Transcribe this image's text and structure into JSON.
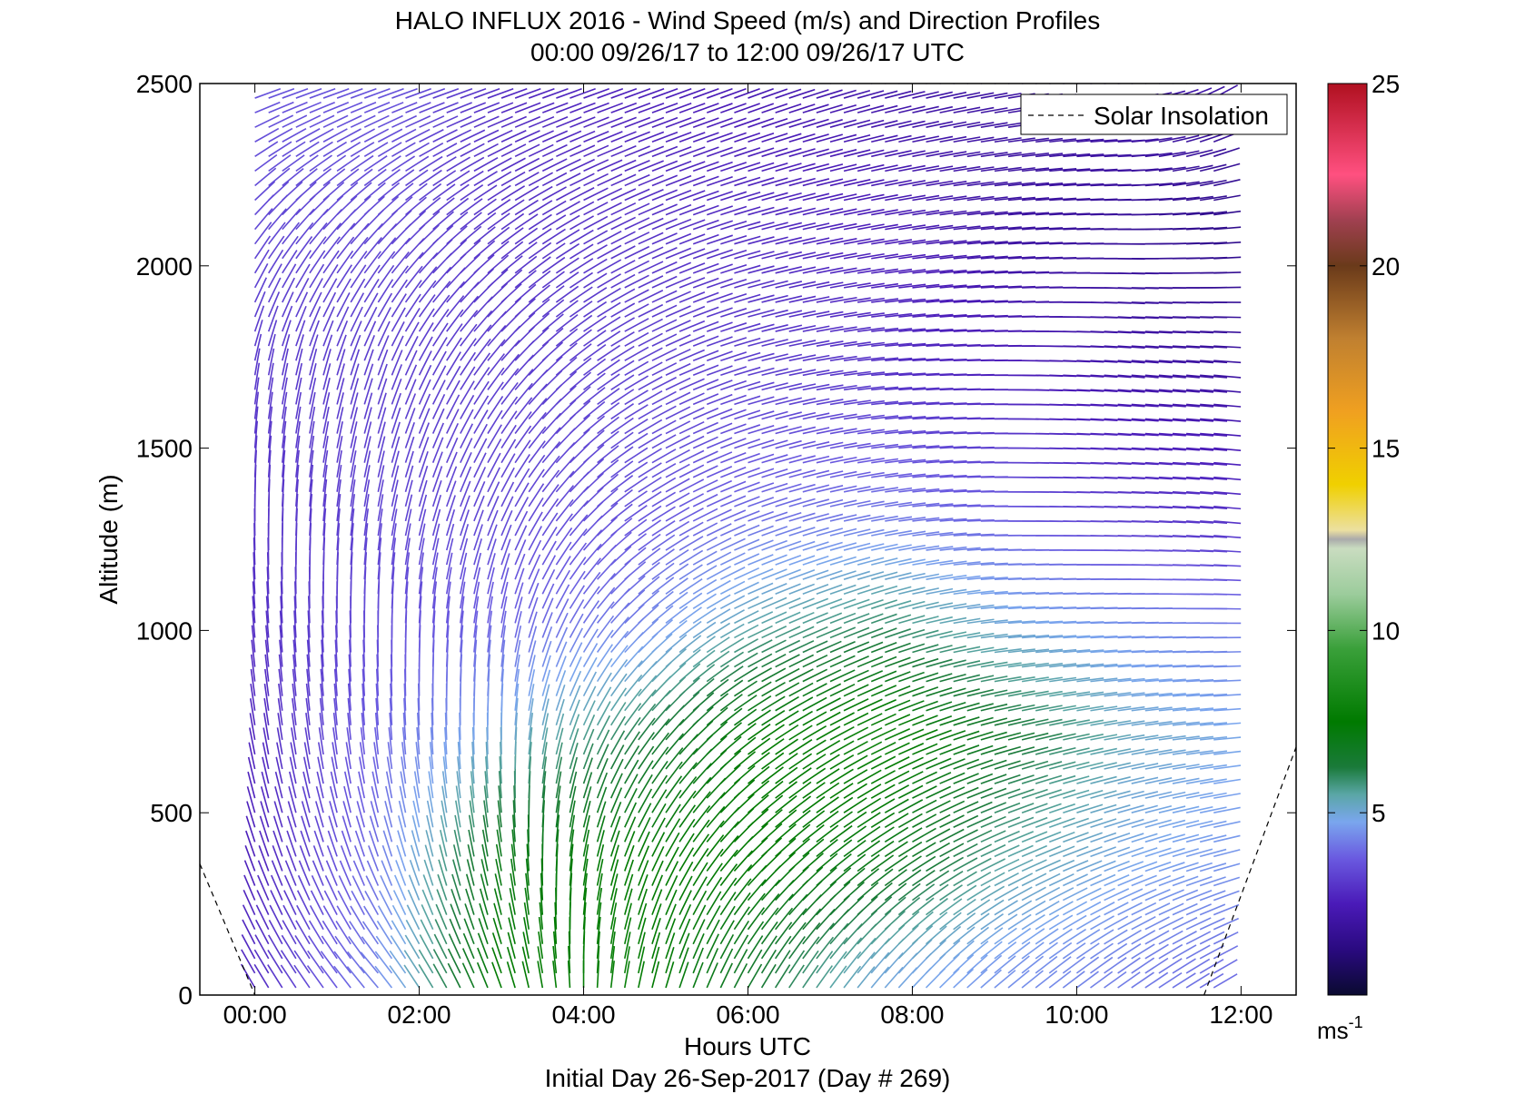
{
  "chart_data": {
    "type": "vector-field",
    "title": "HALO INFLUX 2016 - Wind Speed (m/s) and Direction Profiles",
    "subtitle": "00:00 09/26/17 to 12:00 09/26/17  UTC",
    "xlabel": "Hours UTC",
    "footer": "Initial Day 26-Sep-2017 (Day # 269)",
    "ylabel": "Altitude (m)",
    "x_unit": "hours",
    "x_range": [
      -0.67,
      12.67
    ],
    "y_range": [
      0,
      2500
    ],
    "x_ticks": [
      0,
      2,
      4,
      6,
      8,
      10,
      12
    ],
    "x_tick_labels": [
      "00:00",
      "02:00",
      "04:00",
      "06:00",
      "08:00",
      "10:00",
      "12:00"
    ],
    "y_ticks": [
      0,
      500,
      1000,
      1500,
      2000,
      2500
    ],
    "y_tick_labels": [
      "0",
      "500",
      "1000",
      "1500",
      "2000",
      "2500"
    ],
    "legend": {
      "label": "Solar Insolation",
      "placement": "top-right",
      "style": "dashed"
    },
    "colorbar": {
      "range": [
        0,
        25
      ],
      "ticks": [
        5,
        10,
        15,
        20,
        25
      ],
      "tick_labels": [
        "5",
        "10",
        "15",
        "20",
        "25"
      ],
      "unit_label": "ms",
      "unit_exponent": "-1"
    },
    "solar_insolation_curve": [
      {
        "x": -0.67,
        "y": 360
      },
      {
        "x": 0.0,
        "y": 0
      },
      {
        "x": 11.55,
        "y": 0
      },
      {
        "x": 12.67,
        "y": 680
      }
    ],
    "profiles": [
      {
        "time": 0.0,
        "speed": [
          2.8,
          2.6,
          2.7,
          2.9,
          3.0,
          3.1,
          3.4,
          3.6
        ],
        "direction": [
          150,
          160,
          170,
          175,
          180,
          190,
          220,
          250
        ]
      },
      {
        "time": 1.5,
        "speed": [
          4.2,
          4.0,
          3.8,
          3.5,
          3.3,
          3.2,
          3.4,
          3.6
        ],
        "direction": [
          140,
          160,
          175,
          180,
          190,
          200,
          225,
          250
        ]
      },
      {
        "time": 3.0,
        "speed": [
          7.5,
          7.0,
          5.0,
          3.8,
          3.4,
          3.2,
          3.0,
          2.8
        ],
        "direction": [
          160,
          170,
          180,
          190,
          205,
          220,
          235,
          250
        ]
      },
      {
        "time": 4.5,
        "speed": [
          7.8,
          7.5,
          6.0,
          4.2,
          3.6,
          3.3,
          3.0,
          2.6
        ],
        "direction": [
          190,
          200,
          215,
          225,
          235,
          240,
          245,
          250
        ]
      },
      {
        "time": 6.0,
        "speed": [
          6.5,
          7.5,
          7.5,
          5.5,
          4.0,
          3.2,
          2.8,
          2.4
        ],
        "direction": [
          210,
          225,
          235,
          245,
          250,
          255,
          255,
          250
        ]
      },
      {
        "time": 7.5,
        "speed": [
          5.0,
          7.0,
          8.0,
          6.0,
          4.2,
          3.0,
          2.5,
          2.2
        ],
        "direction": [
          220,
          235,
          245,
          250,
          260,
          265,
          260,
          255
        ]
      },
      {
        "time": 9.0,
        "speed": [
          4.5,
          5.5,
          6.5,
          5.0,
          3.8,
          2.6,
          2.0,
          2.0
        ],
        "direction": [
          230,
          245,
          255,
          265,
          270,
          270,
          265,
          260
        ]
      },
      {
        "time": 10.5,
        "speed": [
          4.2,
          4.8,
          5.2,
          4.5,
          3.2,
          2.2,
          1.8,
          2.2
        ],
        "direction": [
          235,
          250,
          260,
          268,
          272,
          275,
          270,
          265
        ]
      },
      {
        "time": 11.75,
        "speed": [
          4.0,
          4.5,
          4.8,
          4.2,
          3.0,
          2.0,
          1.5,
          2.0
        ],
        "direction": [
          240,
          255,
          265,
          270,
          275,
          275,
          265,
          240
        ]
      }
    ],
    "profile_altitudes": [
      50,
      350,
      700,
      1000,
      1300,
      1700,
      2100,
      2450
    ]
  }
}
